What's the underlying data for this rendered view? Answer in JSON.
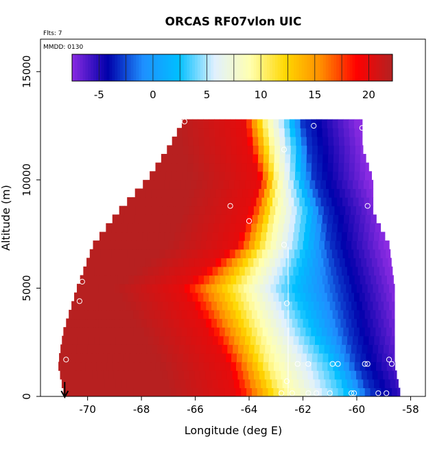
{
  "chart_data": {
    "type": "heatmap",
    "title": "ORCAS RF07vlon UIC",
    "annotations": {
      "flts": "Flts: 7",
      "mmdd": "MMDD: 0130"
    },
    "xlabel": "Longitude (deg E)",
    "ylabel": "Altitude (m)",
    "xlim": [
      -71.75,
      -57.45
    ],
    "ylim": [
      0,
      16500
    ],
    "x_ticks": [
      -70,
      -68,
      -66,
      -64,
      -62,
      -60,
      -58
    ],
    "x_tick_labels": [
      "-70",
      "-68",
      "-66",
      "-64",
      "-62",
      "-60",
      "-58"
    ],
    "y_ticks": [
      0,
      5000,
      10000,
      15000
    ],
    "y_tick_labels": [
      "0",
      "5000",
      "10000",
      "15000"
    ],
    "colorbar": {
      "range": [
        -7.5,
        22.2
      ],
      "ticks": [
        -5,
        0,
        5,
        10,
        15,
        20
      ],
      "tick_labels": [
        "-5",
        "0",
        "5",
        "10",
        "15",
        "20"
      ],
      "colors": [
        "#8a2be2",
        "#0000aa",
        "#1e90ff",
        "#00bfff",
        "#e0f0ff",
        "#ffffb0",
        "#ffd700",
        "#ff8c00",
        "#ff0000",
        "#b22222"
      ]
    },
    "grid": false,
    "arrow_x": -70.85,
    "vertical_line_x": -62.55,
    "field_profiles": [
      {
        "z": 200,
        "x": [
          -62.8,
          -60.5
        ],
        "x0": [
          -64.5,
          -59.5
        ],
        "xl": -70.9,
        "xr": -58.4
      },
      {
        "z": 1500,
        "x": [
          -63.3,
          -61.0
        ],
        "x0": [
          -64.8,
          -60.0
        ],
        "xl": -71.1,
        "xr": -58.6
      },
      {
        "z": 3000,
        "x": [
          -63.7,
          -61.8
        ],
        "x0": [
          -65.5,
          -60.3
        ],
        "xl": -70.9,
        "xr": -58.6
      },
      {
        "z": 5000,
        "x": [
          -64.3,
          -62.5
        ],
        "x0": [
          -66.5,
          -60.6
        ],
        "xl": -70.4,
        "xr": -58.6
      },
      {
        "z": 7000,
        "x": [
          -63.4,
          -62.0
        ],
        "x0": [
          -64.5,
          -61.0
        ],
        "xl": -69.8,
        "xr": -58.8
      },
      {
        "z": 8500,
        "x": [
          -63.1,
          -61.9
        ],
        "x0": [
          -64.0,
          -61.2
        ],
        "xl": -68.9,
        "xr": -59.4
      },
      {
        "z": 10000,
        "x": [
          -63.0,
          -62.2
        ],
        "x0": [
          -63.6,
          -61.6
        ],
        "xl": -67.8,
        "xr": -59.4
      },
      {
        "z": 11500,
        "x": [
          -63.2,
          -62.3
        ],
        "x0": [
          -64.0,
          -61.8
        ],
        "xl": -67.0,
        "xr": -59.8
      },
      {
        "z": 12600,
        "x": [
          -63.4,
          -62.5
        ],
        "x0": [
          -64.2,
          -62.0
        ],
        "xl": -66.5,
        "xr": -59.8
      }
    ],
    "tmin": -7.5,
    "tmax": 22,
    "markers": [
      {
        "x": -70.8,
        "y": 1700
      },
      {
        "x": -70.3,
        "y": 4400
      },
      {
        "x": -70.2,
        "y": 5300
      },
      {
        "x": -66.4,
        "y": 12700
      },
      {
        "x": -64.7,
        "y": 8800
      },
      {
        "x": -64.0,
        "y": 8100
      },
      {
        "x": -62.7,
        "y": 11400
      },
      {
        "x": -62.7,
        "y": 7000
      },
      {
        "x": -62.6,
        "y": 4300
      },
      {
        "x": -62.6,
        "y": 700
      },
      {
        "x": -62.8,
        "y": 150
      },
      {
        "x": -62.4,
        "y": 150
      },
      {
        "x": -62.2,
        "y": 1500
      },
      {
        "x": -61.8,
        "y": 1500
      },
      {
        "x": -61.6,
        "y": 12500
      },
      {
        "x": -61.8,
        "y": 150
      },
      {
        "x": -61.5,
        "y": 150
      },
      {
        "x": -61.0,
        "y": 150
      },
      {
        "x": -60.9,
        "y": 1500
      },
      {
        "x": -60.7,
        "y": 1500
      },
      {
        "x": -60.2,
        "y": 150
      },
      {
        "x": -60.1,
        "y": 150
      },
      {
        "x": -59.8,
        "y": 12400
      },
      {
        "x": -59.7,
        "y": 1500
      },
      {
        "x": -59.6,
        "y": 1500
      },
      {
        "x": -59.6,
        "y": 8800
      },
      {
        "x": -59.2,
        "y": 150
      },
      {
        "x": -58.9,
        "y": 150
      },
      {
        "x": -58.8,
        "y": 1700
      },
      {
        "x": -58.7,
        "y": 1500
      },
      {
        "x": -58.6,
        "y": 6400
      },
      {
        "x": -58.2,
        "y": 350
      }
    ]
  }
}
